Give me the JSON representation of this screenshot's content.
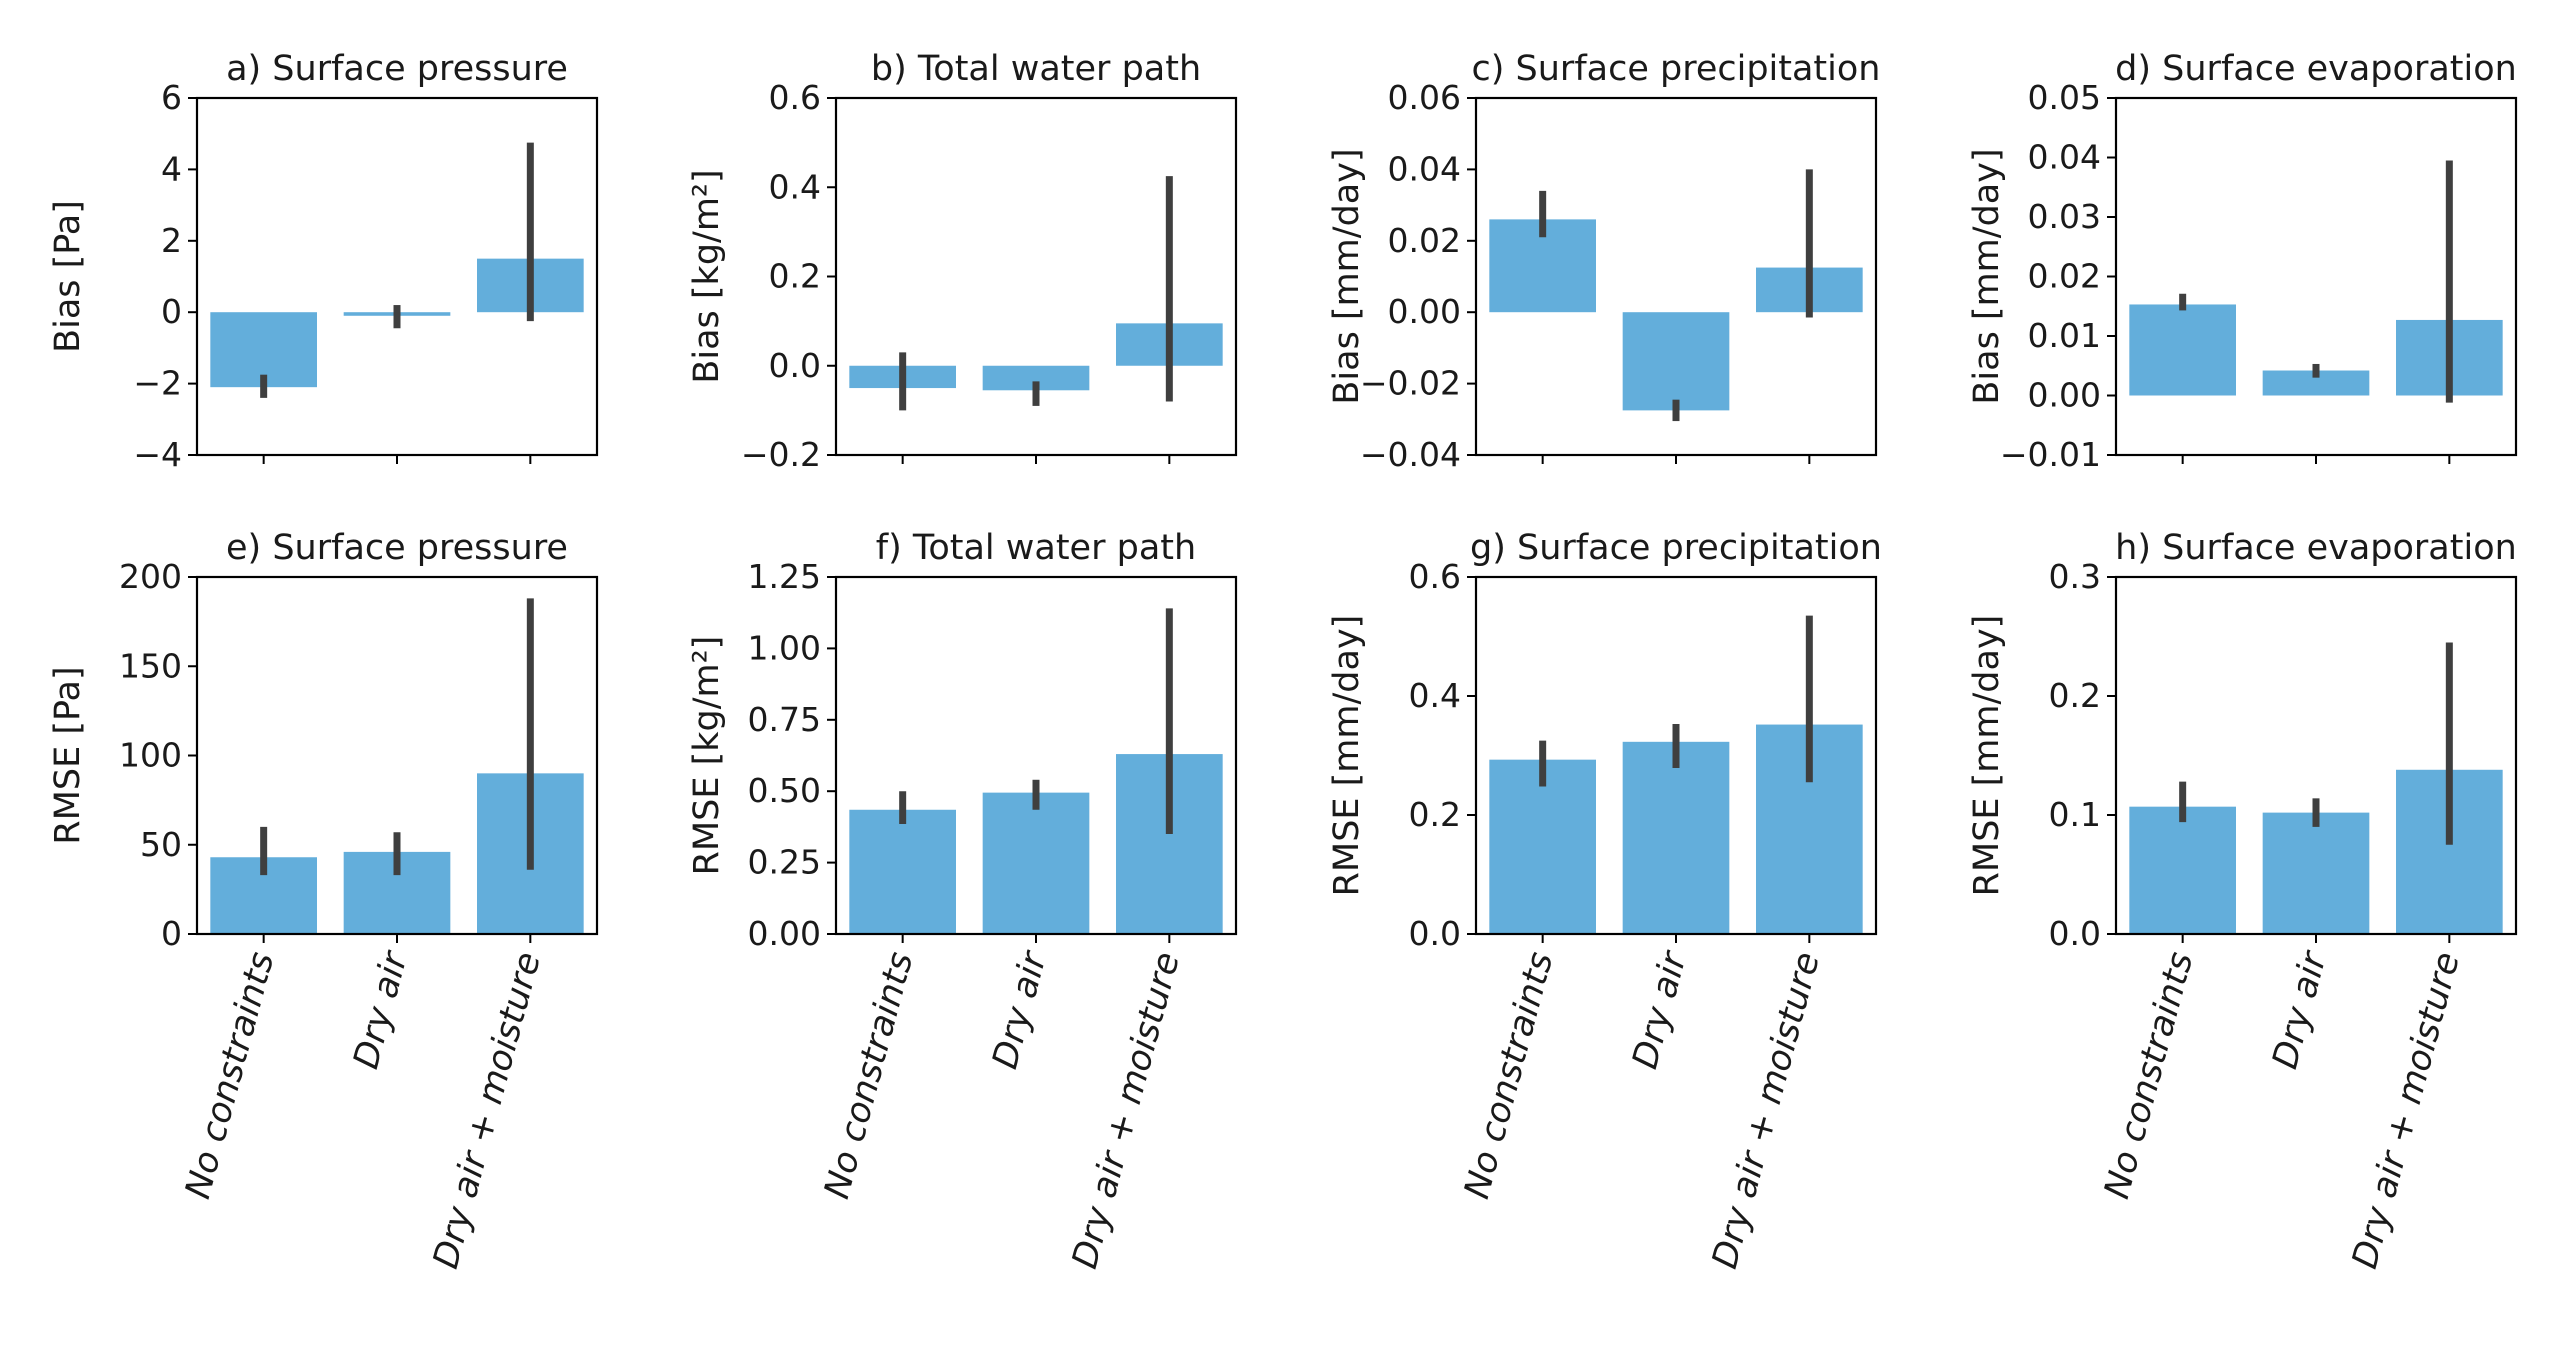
{
  "colors": {
    "bar": "#63aedb",
    "errorbar": "#3f3f3f",
    "axis": "#000000",
    "text": "#1a1a1a"
  },
  "categories": [
    "No constraints",
    "Dry air",
    "Dry air + moisture"
  ],
  "chart_data": [
    {
      "type": "bar",
      "title": "a) Surface pressure",
      "ylabel": "Bias [Pa]",
      "ylim": [
        -4,
        6
      ],
      "yticks": [
        -4,
        -2,
        0,
        2,
        4,
        6
      ],
      "ytick_labels": [
        "−4",
        "−2",
        "0",
        "2",
        "4",
        "6"
      ],
      "categories": [
        "No constraints",
        "Dry air",
        "Dry air + moisture"
      ],
      "values": [
        -2.1,
        -0.1,
        1.5
      ],
      "error_low": [
        -2.4,
        -0.45,
        -0.25
      ],
      "error_high": [
        -1.75,
        0.2,
        4.75
      ],
      "show_x_labels": false
    },
    {
      "type": "bar",
      "title": "b) Total water path",
      "ylabel": "Bias [kg/m²]",
      "ylim": [
        -0.2,
        0.6
      ],
      "yticks": [
        -0.2,
        0.0,
        0.2,
        0.4,
        0.6
      ],
      "ytick_labels": [
        "−0.2",
        "0.0",
        "0.2",
        "0.4",
        "0.6"
      ],
      "categories": [
        "No constraints",
        "Dry air",
        "Dry air + moisture"
      ],
      "values": [
        -0.05,
        -0.055,
        0.095
      ],
      "error_low": [
        -0.1,
        -0.09,
        -0.08
      ],
      "error_high": [
        0.03,
        -0.035,
        0.425
      ],
      "show_x_labels": false
    },
    {
      "type": "bar",
      "title": "c) Surface precipitation",
      "ylabel": "Bias [mm/day]",
      "ylim": [
        -0.04,
        0.06
      ],
      "yticks": [
        -0.04,
        -0.02,
        0.0,
        0.02,
        0.04,
        0.06
      ],
      "ytick_labels": [
        "−0.04",
        "−0.02",
        "0.00",
        "0.02",
        "0.04",
        "0.06"
      ],
      "categories": [
        "No constraints",
        "Dry air",
        "Dry air + moisture"
      ],
      "values": [
        0.026,
        -0.0275,
        0.0125
      ],
      "error_low": [
        0.021,
        -0.0305,
        -0.0015
      ],
      "error_high": [
        0.034,
        -0.0245,
        0.04
      ],
      "show_x_labels": false
    },
    {
      "type": "bar",
      "title": "d) Surface evaporation",
      "ylabel": "Bias [mm/day]",
      "ylim": [
        -0.01,
        0.05
      ],
      "yticks": [
        -0.01,
        0.0,
        0.01,
        0.02,
        0.03,
        0.04,
        0.05
      ],
      "ytick_labels": [
        "−0.01",
        "0.00",
        "0.01",
        "0.02",
        "0.03",
        "0.04",
        "0.05"
      ],
      "categories": [
        "No constraints",
        "Dry air",
        "Dry air + moisture"
      ],
      "values": [
        0.0153,
        0.0042,
        0.0127
      ],
      "error_low": [
        0.0143,
        0.003,
        -0.0012
      ],
      "error_high": [
        0.0171,
        0.0053,
        0.0395
      ],
      "show_x_labels": false
    },
    {
      "type": "bar",
      "title": "e) Surface pressure",
      "ylabel": "RMSE [Pa]",
      "ylim": [
        0,
        200
      ],
      "yticks": [
        0,
        50,
        100,
        150,
        200
      ],
      "ytick_labels": [
        "0",
        "50",
        "100",
        "150",
        "200"
      ],
      "categories": [
        "No constraints",
        "Dry air",
        "Dry air + moisture"
      ],
      "values": [
        43,
        46,
        90
      ],
      "error_low": [
        33,
        33,
        36
      ],
      "error_high": [
        60,
        57,
        188
      ],
      "show_x_labels": true
    },
    {
      "type": "bar",
      "title": "f) Total water path",
      "ylabel": "RMSE [kg/m²]",
      "ylim": [
        0,
        1.25
      ],
      "yticks": [
        0.0,
        0.25,
        0.5,
        0.75,
        1.0,
        1.25
      ],
      "ytick_labels": [
        "0.00",
        "0.25",
        "0.50",
        "0.75",
        "1.00",
        "1.25"
      ],
      "categories": [
        "No constraints",
        "Dry air",
        "Dry air + moisture"
      ],
      "values": [
        0.435,
        0.495,
        0.63
      ],
      "error_low": [
        0.385,
        0.435,
        0.35
      ],
      "error_high": [
        0.5,
        0.54,
        1.14
      ],
      "show_x_labels": true
    },
    {
      "type": "bar",
      "title": "g) Surface precipitation",
      "ylabel": "RMSE [mm/day]",
      "ylim": [
        0,
        0.6
      ],
      "yticks": [
        0.0,
        0.2,
        0.4,
        0.6
      ],
      "ytick_labels": [
        "0.0",
        "0.2",
        "0.4",
        "0.6"
      ],
      "categories": [
        "No constraints",
        "Dry air",
        "Dry air + moisture"
      ],
      "values": [
        0.293,
        0.323,
        0.352
      ],
      "error_low": [
        0.248,
        0.279,
        0.255
      ],
      "error_high": [
        0.325,
        0.353,
        0.535
      ],
      "show_x_labels": true
    },
    {
      "type": "bar",
      "title": "h) Surface evaporation",
      "ylabel": "RMSE [mm/day]",
      "ylim": [
        0,
        0.3
      ],
      "yticks": [
        0.0,
        0.1,
        0.2,
        0.3
      ],
      "ytick_labels": [
        "0.0",
        "0.1",
        "0.2",
        "0.3"
      ],
      "categories": [
        "No constraints",
        "Dry air",
        "Dry air + moisture"
      ],
      "values": [
        0.107,
        0.102,
        0.138
      ],
      "error_low": [
        0.094,
        0.09,
        0.075
      ],
      "error_high": [
        0.128,
        0.114,
        0.245
      ],
      "show_x_labels": true
    }
  ]
}
